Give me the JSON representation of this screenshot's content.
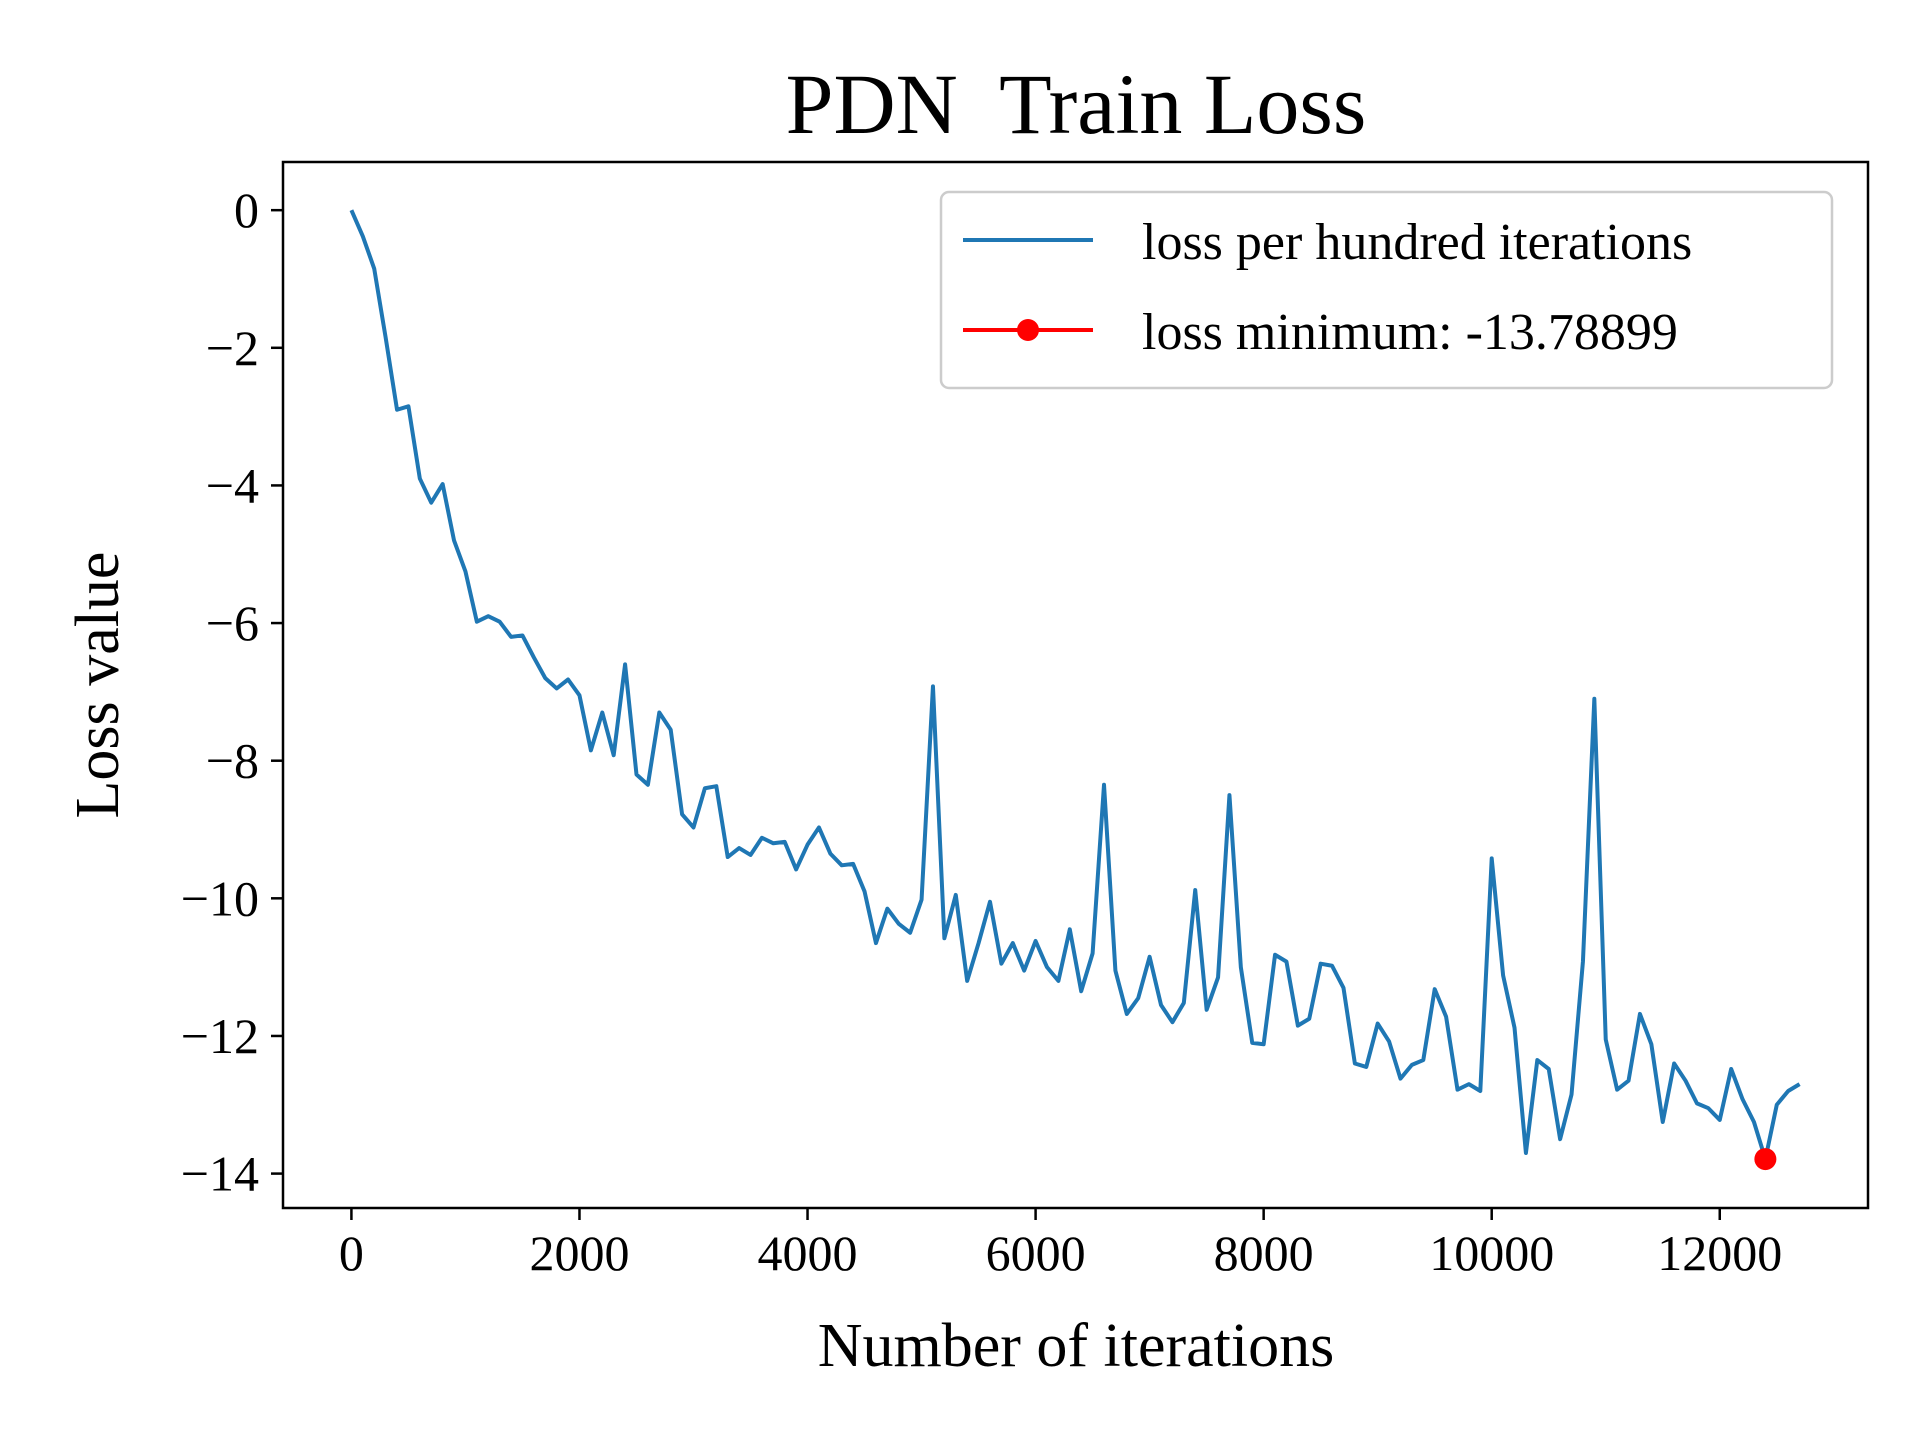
{
  "chart_data": {
    "type": "line",
    "title": "PDN  Train Loss",
    "xlabel": "Number of iterations",
    "ylabel": "Loss value",
    "xlim": [
      -600,
      13300
    ],
    "ylim": [
      -14.5,
      0.7
    ],
    "grid": false,
    "legend_position": "top-right",
    "x_ticks": [
      0,
      2000,
      4000,
      6000,
      8000,
      10000,
      12000
    ],
    "x_tick_labels": [
      "0",
      "2000",
      "4000",
      "6000",
      "8000",
      "10000",
      "12000"
    ],
    "y_ticks": [
      0,
      -2,
      -4,
      -6,
      -8,
      -10,
      -12,
      -14
    ],
    "y_tick_labels": [
      "0",
      "−2",
      "−4",
      "−6",
      "−8",
      "−10",
      "−12",
      "−14"
    ],
    "series": [
      {
        "name": "loss per hundred iterations",
        "color": "#1f77b4",
        "x": [
          0,
          100,
          200,
          300,
          400,
          500,
          600,
          700,
          800,
          900,
          1000,
          1100,
          1200,
          1300,
          1400,
          1500,
          1600,
          1700,
          1800,
          1900,
          2000,
          2100,
          2200,
          2300,
          2400,
          2500,
          2600,
          2700,
          2800,
          2900,
          3000,
          3100,
          3200,
          3300,
          3400,
          3500,
          3600,
          3700,
          3800,
          3900,
          4000,
          4100,
          4200,
          4300,
          4400,
          4500,
          4600,
          4700,
          4800,
          4900,
          5000,
          5100,
          5200,
          5300,
          5400,
          5500,
          5600,
          5700,
          5800,
          5900,
          6000,
          6100,
          6200,
          6300,
          6400,
          6500,
          6600,
          6700,
          6800,
          6900,
          7000,
          7100,
          7200,
          7300,
          7400,
          7500,
          7600,
          7700,
          7800,
          7900,
          8000,
          8100,
          8200,
          8300,
          8400,
          8500,
          8600,
          8700,
          8800,
          8900,
          9000,
          9100,
          9200,
          9300,
          9400,
          9500,
          9600,
          9700,
          9800,
          9900,
          10000,
          10100,
          10200,
          10300,
          10400,
          10500,
          10600,
          10700,
          10800,
          10900,
          11000,
          11100,
          11200,
          11300,
          11400,
          11500,
          11600,
          11700,
          11800,
          11900,
          12000,
          12100,
          12200,
          12300,
          12400,
          12500,
          12600,
          12700
        ],
        "y": [
          0.0,
          -0.38,
          -0.85,
          -1.85,
          -2.9,
          -2.85,
          -3.9,
          -4.25,
          -3.98,
          -4.8,
          -5.25,
          -5.98,
          -5.9,
          -5.98,
          -6.2,
          -6.18,
          -6.5,
          -6.8,
          -6.95,
          -6.82,
          -7.05,
          -7.85,
          -7.3,
          -7.92,
          -6.6,
          -8.2,
          -8.35,
          -7.3,
          -7.55,
          -8.78,
          -8.97,
          -8.4,
          -8.37,
          -9.4,
          -9.27,
          -9.37,
          -9.12,
          -9.2,
          -9.18,
          -9.58,
          -9.22,
          -8.97,
          -9.35,
          -9.52,
          -9.5,
          -9.9,
          -10.65,
          -10.15,
          -10.37,
          -10.5,
          -10.02,
          -6.92,
          -10.58,
          -9.95,
          -11.2,
          -10.65,
          -10.05,
          -10.95,
          -10.65,
          -11.05,
          -10.62,
          -11.0,
          -11.2,
          -10.45,
          -11.35,
          -10.8,
          -8.35,
          -11.05,
          -11.68,
          -11.45,
          -10.85,
          -11.55,
          -11.8,
          -11.52,
          -9.88,
          -11.62,
          -11.15,
          -8.5,
          -11.0,
          -12.1,
          -12.12,
          -10.82,
          -10.92,
          -11.85,
          -11.75,
          -10.95,
          -10.98,
          -11.3,
          -12.4,
          -12.45,
          -11.82,
          -12.08,
          -12.62,
          -12.42,
          -12.35,
          -11.32,
          -11.72,
          -12.78,
          -12.7,
          -12.8,
          -9.42,
          -11.12,
          -11.88,
          -13.7,
          -12.35,
          -12.48,
          -13.5,
          -12.85,
          -10.92,
          -7.1,
          -12.05,
          -12.78,
          -12.65,
          -11.68,
          -12.12,
          -13.25,
          -12.4,
          -12.65,
          -12.98,
          -13.05,
          -13.22,
          -12.48,
          -12.92,
          -13.25,
          -13.79,
          -13.0,
          -12.8,
          -12.7
        ]
      },
      {
        "name": "loss minimum: -13.78899",
        "color": "#ff0000",
        "x": [
          12400
        ],
        "y": [
          -13.78899
        ]
      }
    ]
  }
}
